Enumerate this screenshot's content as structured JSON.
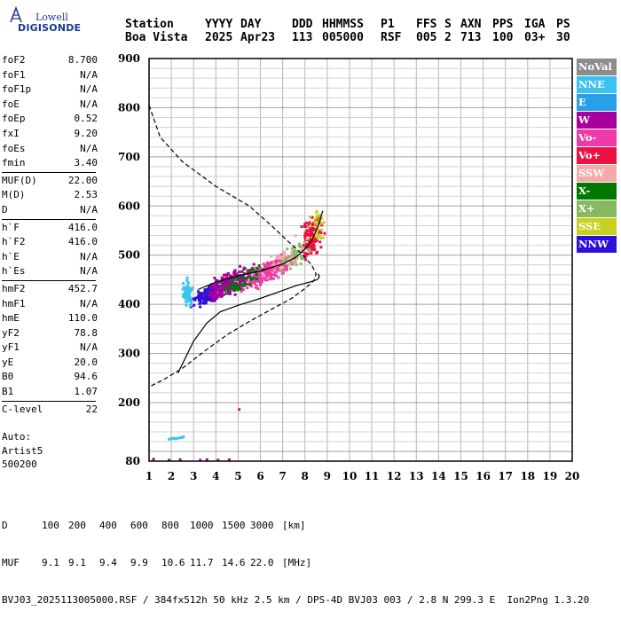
{
  "logo": {
    "brand": "Lowell",
    "name": "DIGISONDE"
  },
  "header": {
    "labels": [
      "Station",
      "YYYY",
      "DAY",
      "DDD",
      "HHMMSS",
      "P1",
      "FFS",
      "S",
      "AXN",
      "PPS",
      "IGA",
      "PS"
    ],
    "values": [
      "Boa Vista",
      "2025",
      "Apr23",
      "113",
      "005000",
      "RSF",
      "005",
      "2",
      "713",
      "100",
      "03+",
      "30"
    ]
  },
  "params": [
    {
      "label": "foF2",
      "value": "8.700"
    },
    {
      "label": "foF1",
      "value": "N/A"
    },
    {
      "label": "foF1p",
      "value": "N/A"
    },
    {
      "label": "foE",
      "value": "N/A"
    },
    {
      "label": "foEp",
      "value": "0.52"
    },
    {
      "label": "fxI",
      "value": "9.20"
    },
    {
      "label": "foEs",
      "value": "N/A"
    },
    {
      "label": "fmin",
      "value": "3.40"
    },
    {
      "label": "MUF(D)",
      "value": "22.00"
    },
    {
      "label": "M(D)",
      "value": "2.53"
    },
    {
      "label": "D",
      "value": "N/A"
    },
    {
      "label": "h`F",
      "value": "416.0"
    },
    {
      "label": "h`F2",
      "value": "416.0"
    },
    {
      "label": "h`E",
      "value": "N/A"
    },
    {
      "label": "h`Es",
      "value": "N/A"
    },
    {
      "label": "hmF2",
      "value": "452.7"
    },
    {
      "label": "hmF1",
      "value": "N/A"
    },
    {
      "label": "hmE",
      "value": "110.0"
    },
    {
      "label": "yF2",
      "value": "78.8"
    },
    {
      "label": "yF1",
      "value": "N/A"
    },
    {
      "label": "yE",
      "value": "20.0"
    },
    {
      "label": "B0",
      "value": "94.6"
    },
    {
      "label": "B1",
      "value": "1.07"
    },
    {
      "label": "C-level",
      "value": "22"
    }
  ],
  "auto": {
    "line1": "Auto:",
    "line2": "Artist5",
    "line3": "500200"
  },
  "chart_data": {
    "type": "scatter",
    "title": "",
    "xlabel": "",
    "ylabel": "",
    "xlim": [
      1,
      20
    ],
    "ylim": [
      80,
      900
    ],
    "xticks": [
      "1",
      "2",
      "3",
      "4",
      "5",
      "6",
      "7",
      "8",
      "9",
      "10",
      "11",
      "12",
      "13",
      "14",
      "15",
      "16",
      "17",
      "18",
      "19",
      "20"
    ],
    "yticks": [
      "80",
      "200",
      "300",
      "400",
      "500",
      "600",
      "700",
      "800",
      "900"
    ],
    "grid": true,
    "legend_placement": "right",
    "legend": [
      {
        "name": "NoVal",
        "color": "#8c8c8c"
      },
      {
        "name": "NNE",
        "color": "#3cc2f0"
      },
      {
        "name": "E",
        "color": "#28a0e8"
      },
      {
        "name": "W",
        "color": "#a8009c"
      },
      {
        "name": "Vo-",
        "color": "#ee3aa8"
      },
      {
        "name": "Vo+",
        "color": "#ee1040"
      },
      {
        "name": "SSW",
        "color": "#f4aaa8"
      },
      {
        "name": "X-",
        "color": "#007800"
      },
      {
        "name": "X+",
        "color": "#88b860"
      },
      {
        "name": "SSE",
        "color": "#c8d020"
      },
      {
        "name": "NNW",
        "color": "#2a10d8"
      }
    ],
    "trace_dashed_profile": [
      [
        1.0,
        805
      ],
      [
        1.5,
        740
      ],
      [
        2.5,
        690
      ],
      [
        4.0,
        640
      ],
      [
        5.5,
        600
      ],
      [
        6.5,
        560
      ],
      [
        7.2,
        530
      ],
      [
        7.8,
        505
      ],
      [
        8.3,
        480
      ],
      [
        8.5,
        462
      ],
      [
        8.4,
        448
      ],
      [
        8.0,
        432
      ],
      [
        7.4,
        412
      ],
      [
        6.5,
        390
      ],
      [
        5.5,
        365
      ],
      [
        4.5,
        338
      ],
      [
        3.5,
        305
      ],
      [
        2.5,
        270
      ],
      [
        1.7,
        248
      ],
      [
        1.0,
        232
      ]
    ],
    "trace_solid_profile": [
      [
        2.3,
        260
      ],
      [
        3.0,
        325
      ],
      [
        3.6,
        362
      ],
      [
        4.2,
        385
      ],
      [
        5.0,
        398
      ],
      [
        6.0,
        412
      ],
      [
        7.0,
        428
      ],
      [
        7.6,
        438
      ],
      [
        8.2,
        445
      ],
      [
        8.55,
        450
      ],
      [
        8.65,
        456
      ],
      [
        8.6,
        462
      ]
    ],
    "trace_solid_trace": [
      [
        3.2,
        430
      ],
      [
        4.0,
        445
      ],
      [
        5.0,
        458
      ],
      [
        6.0,
        468
      ],
      [
        7.0,
        482
      ],
      [
        7.6,
        496
      ],
      [
        8.0,
        512
      ],
      [
        8.3,
        530
      ],
      [
        8.6,
        560
      ],
      [
        8.8,
        590
      ]
    ],
    "scatter_clusters": [
      {
        "color": "#2a10d8",
        "center": [
          3.6,
          418
        ],
        "spread": [
          0.55,
          12
        ],
        "n": 150
      },
      {
        "color": "#a8009c",
        "center": [
          4.6,
          440
        ],
        "spread": [
          0.9,
          18
        ],
        "n": 220
      },
      {
        "color": "#ee3aa8",
        "center": [
          6.4,
          468
        ],
        "spread": [
          1.0,
          18
        ],
        "n": 200
      },
      {
        "color": "#ee1040",
        "center": [
          8.3,
          535
        ],
        "spread": [
          0.45,
          35
        ],
        "n": 120
      },
      {
        "color": "#3cc2f0",
        "center": [
          2.7,
          422
        ],
        "spread": [
          0.25,
          18
        ],
        "n": 80
      },
      {
        "color": "#88b860",
        "center": [
          7.6,
          500
        ],
        "spread": [
          0.6,
          18
        ],
        "n": 60
      },
      {
        "color": "#007800",
        "center": [
          5.2,
          450
        ],
        "spread": [
          0.9,
          16
        ],
        "n": 50
      },
      {
        "color": "#c8d020",
        "center": [
          8.6,
          560
        ],
        "spread": [
          0.3,
          25
        ],
        "n": 30
      },
      {
        "color": "#f4aaa8",
        "center": [
          7.0,
          490
        ],
        "spread": [
          1.2,
          25
        ],
        "n": 30
      }
    ],
    "low_echoes": [
      {
        "color": "#3cc2f0",
        "points": [
          [
            1.9,
            125
          ],
          [
            2.0,
            126
          ],
          [
            2.1,
            127
          ],
          [
            2.2,
            126
          ],
          [
            2.3,
            127
          ],
          [
            2.4,
            128
          ],
          [
            2.5,
            129
          ],
          [
            2.55,
            130
          ],
          [
            2.45,
            128
          ],
          [
            2.15,
            126
          ]
        ]
      },
      {
        "color": "#a8009c",
        "points": [
          [
            1.9,
            82
          ],
          [
            2.4,
            83
          ],
          [
            3.3,
            82
          ],
          [
            3.6,
            83
          ],
          [
            4.1,
            82
          ],
          [
            4.6,
            83
          ],
          [
            1.2,
            84
          ]
        ]
      },
      {
        "color": "#ee1040",
        "points": [
          [
            5.05,
            186
          ]
        ]
      }
    ]
  },
  "footer": {
    "row_d_label": "D",
    "row_d": [
      "100",
      "200",
      "400",
      "600",
      "800",
      "1000",
      "1500",
      "3000"
    ],
    "row_d_unit": "[km]",
    "row_muf_label": "MUF",
    "row_muf": [
      "9.1",
      "9.1",
      "9.4",
      "9.9",
      "10.6",
      "11.7",
      "14.6",
      "22.0"
    ],
    "row_muf_unit": "[MHz]",
    "info": "BVJ03_2025113005000.RSF / 384fx512h 50 kHz 2.5 km / DPS-4D BVJ03 003 / 2.8 N 299.3 E  Ion2Png 1.3.20"
  }
}
